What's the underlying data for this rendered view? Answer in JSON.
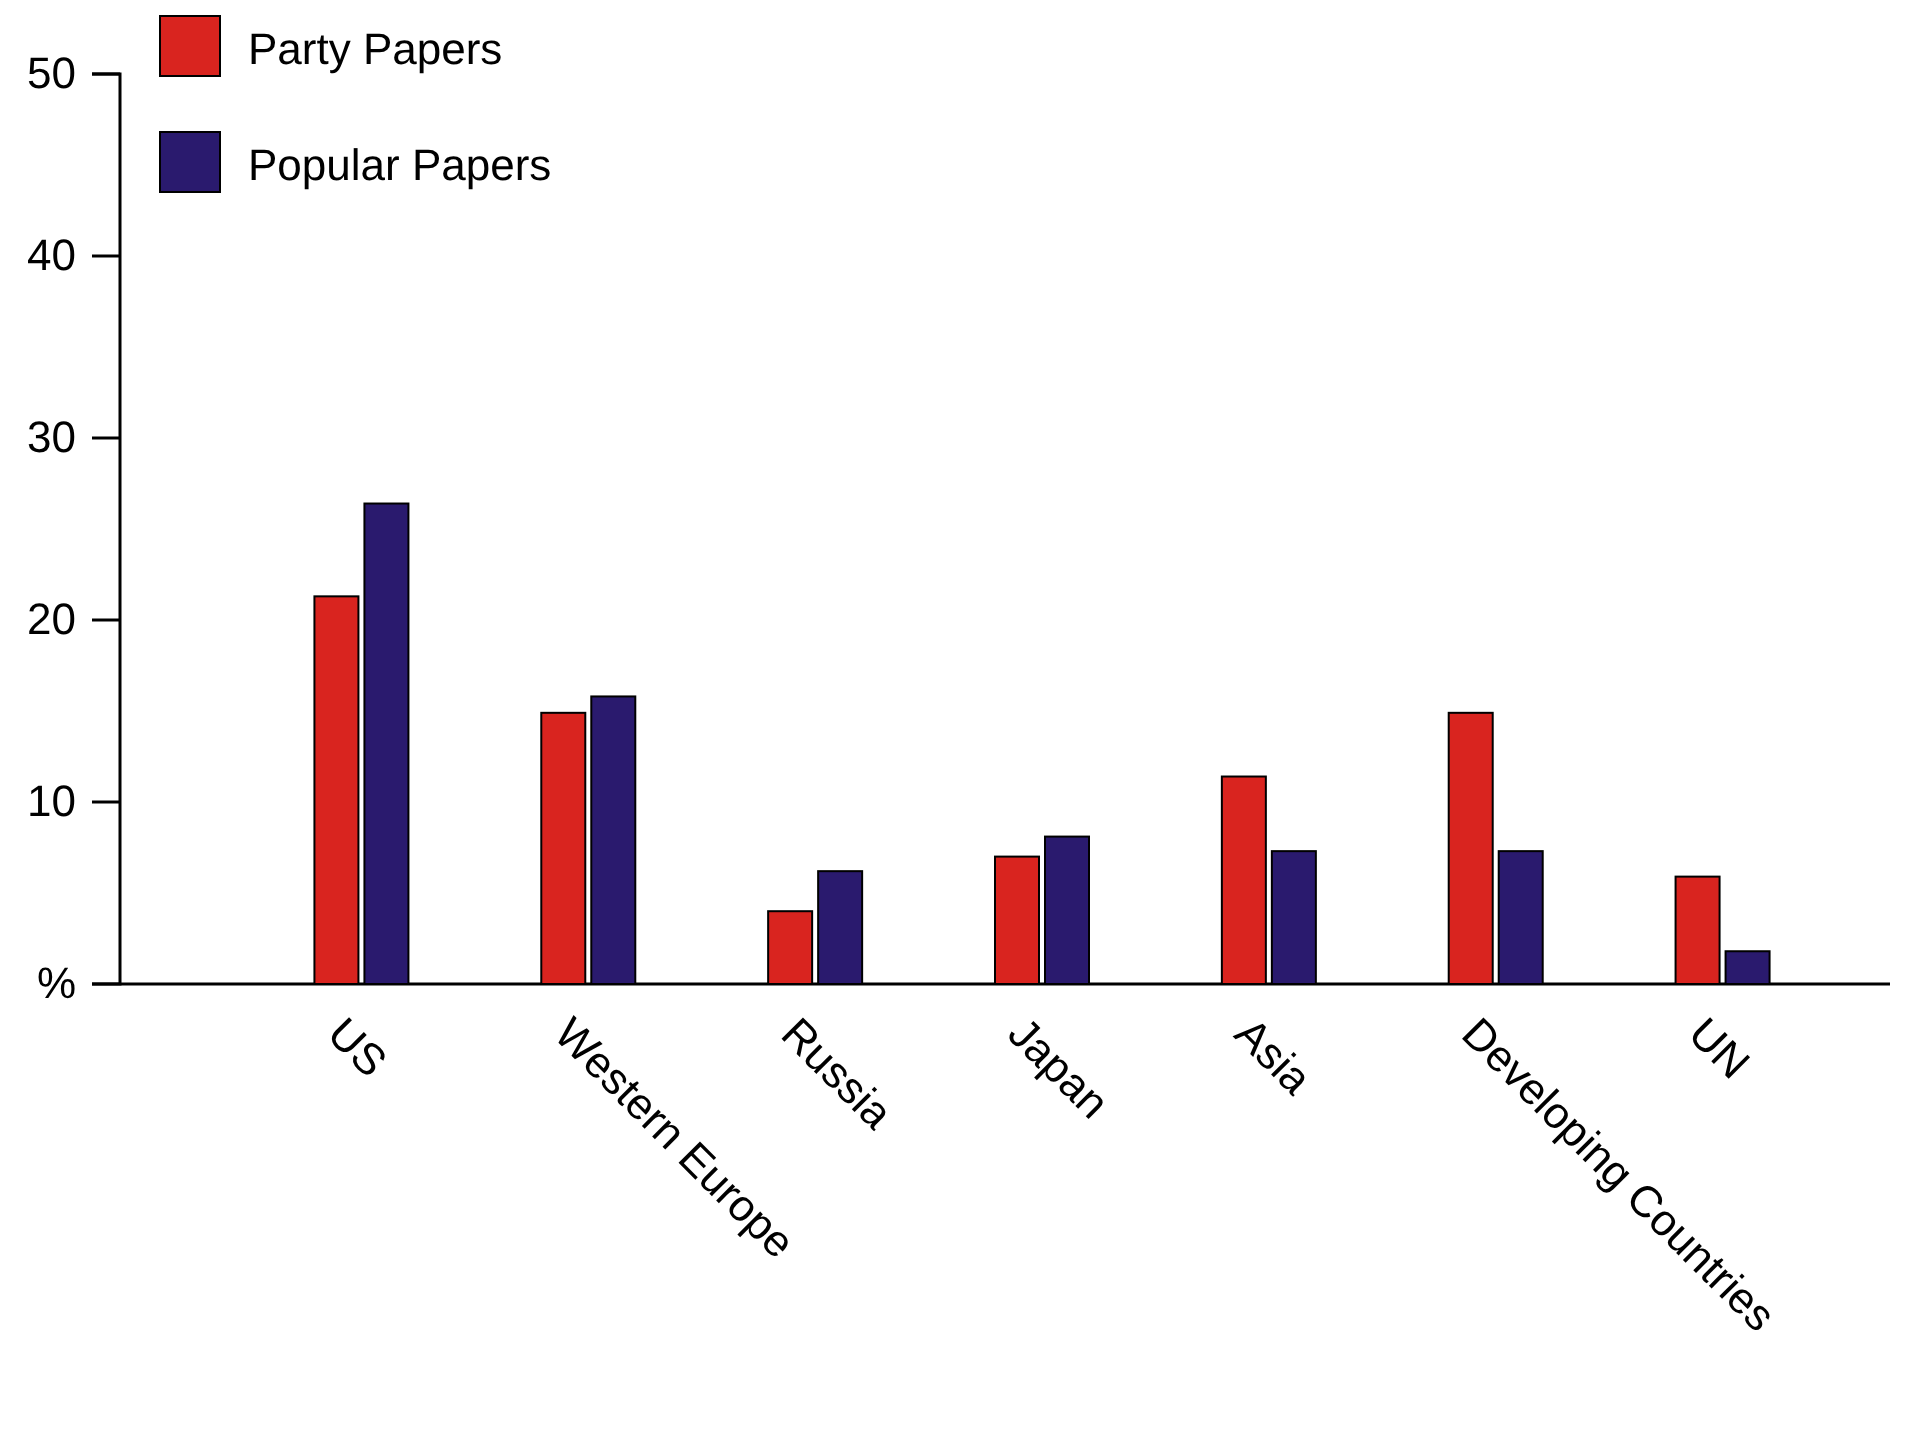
{
  "chart_data": {
    "type": "bar",
    "categories": [
      "US",
      "Western Europe",
      "Russia",
      "Japan",
      "Asia",
      "Developing Countries",
      "UN"
    ],
    "series": [
      {
        "name": "Party Papers",
        "color": "#d9241f",
        "values": [
          21.3,
          14.9,
          4.0,
          7.0,
          11.4,
          14.9,
          5.9
        ]
      },
      {
        "name": "Popular Papers",
        "color": "#2a1a6e",
        "values": [
          26.4,
          15.8,
          6.2,
          8.1,
          7.3,
          7.3,
          1.8
        ]
      }
    ],
    "ylim": [
      0,
      50
    ],
    "yticks": [
      {
        "value": 0,
        "label": "%"
      },
      10,
      20,
      30,
      40,
      50
    ],
    "legend": "top left",
    "grid": false
  }
}
